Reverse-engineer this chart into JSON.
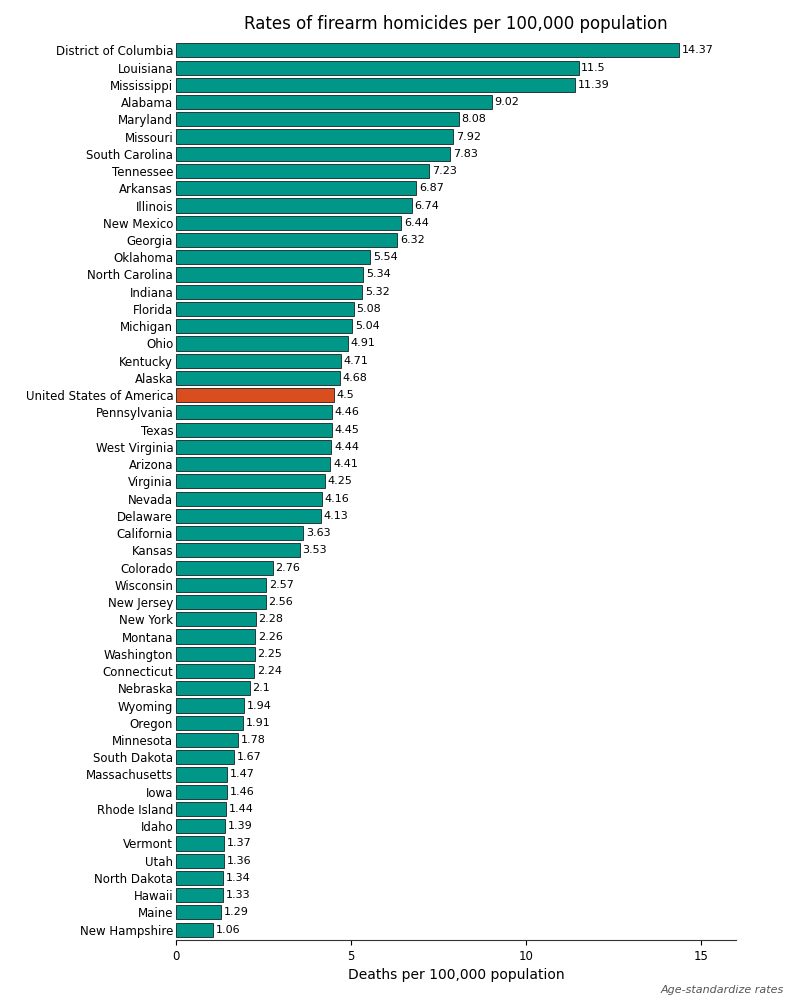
{
  "title": "Rates of firearm homicides per 100,000 population",
  "xlabel": "Deaths per 100,000 population",
  "footnote": "Age-standardize rates",
  "states": [
    "District of Columbia",
    "Louisiana",
    "Mississippi",
    "Alabama",
    "Maryland",
    "Missouri",
    "South Carolina",
    "Tennessee",
    "Arkansas",
    "Illinois",
    "New Mexico",
    "Georgia",
    "Oklahoma",
    "North Carolina",
    "Indiana",
    "Florida",
    "Michigan",
    "Ohio",
    "Kentucky",
    "Alaska",
    "United States of America",
    "Pennsylvania",
    "Texas",
    "West Virginia",
    "Arizona",
    "Virginia",
    "Nevada",
    "Delaware",
    "California",
    "Kansas",
    "Colorado",
    "Wisconsin",
    "New Jersey",
    "New York",
    "Montana",
    "Washington",
    "Connecticut",
    "Nebraska",
    "Wyoming",
    "Oregon",
    "Minnesota",
    "South Dakota",
    "Massachusetts",
    "Iowa",
    "Rhode Island",
    "Idaho",
    "Vermont",
    "Utah",
    "North Dakota",
    "Hawaii",
    "Maine",
    "New Hampshire"
  ],
  "values": [
    14.37,
    11.5,
    11.39,
    9.02,
    8.08,
    7.92,
    7.83,
    7.23,
    6.87,
    6.74,
    6.44,
    6.32,
    5.54,
    5.34,
    5.32,
    5.08,
    5.04,
    4.91,
    4.71,
    4.68,
    4.5,
    4.46,
    4.45,
    4.44,
    4.41,
    4.25,
    4.16,
    4.13,
    3.63,
    3.53,
    2.76,
    2.57,
    2.56,
    2.28,
    2.26,
    2.25,
    2.24,
    2.1,
    1.94,
    1.91,
    1.78,
    1.67,
    1.47,
    1.46,
    1.44,
    1.39,
    1.37,
    1.36,
    1.34,
    1.33,
    1.29,
    1.06
  ],
  "bar_color_default": "#009688",
  "bar_color_highlight": "#D94E1F",
  "highlight_index": 20,
  "bar_edge_color": "#000000",
  "bar_edge_width": 0.5,
  "xlim": [
    0,
    16
  ],
  "xticks": [
    0,
    5,
    10,
    15
  ],
  "background_color": "#ffffff",
  "title_fontsize": 12,
  "label_fontsize": 8.5,
  "value_fontsize": 8,
  "xlabel_fontsize": 10,
  "footnote_fontsize": 8
}
